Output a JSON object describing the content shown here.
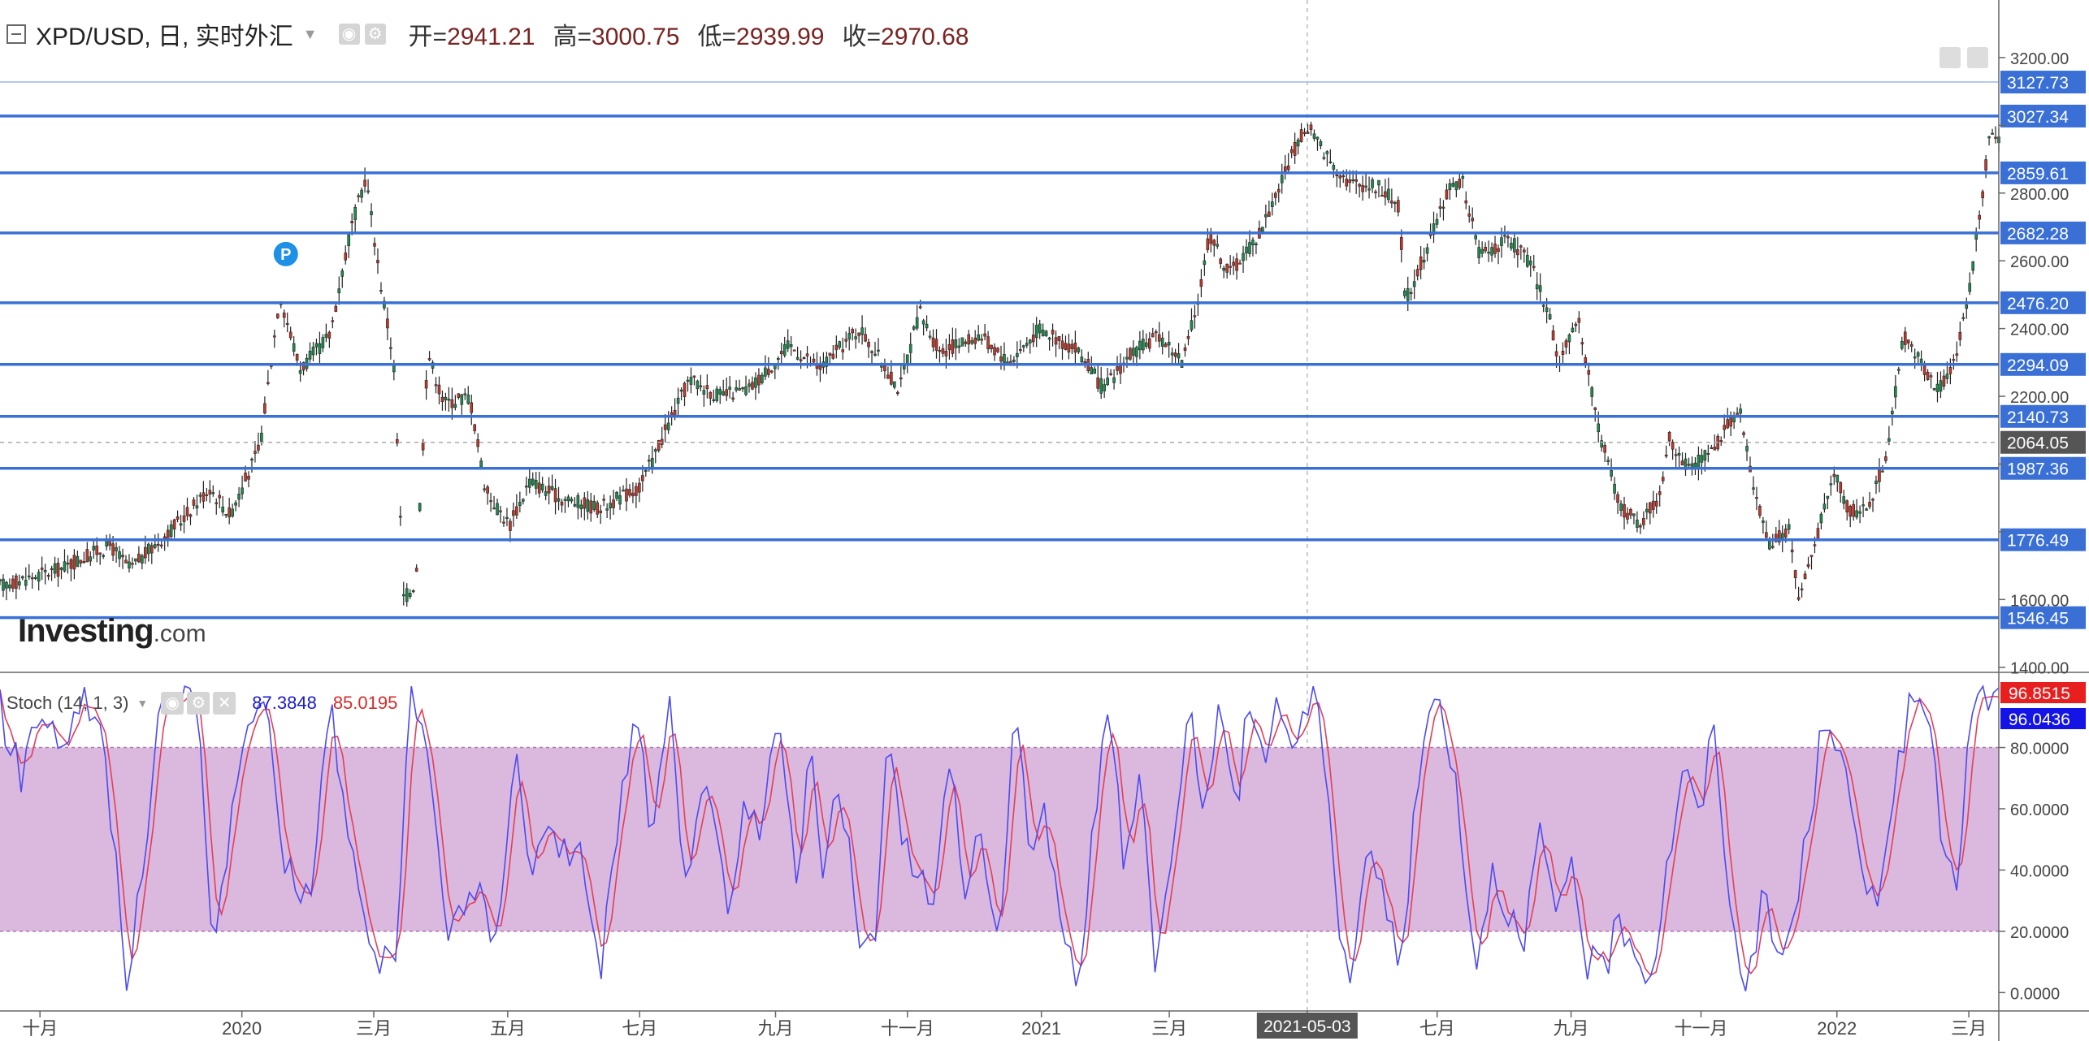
{
  "header": {
    "title": "XPD/USD, 日, 实时外汇",
    "open_label": "开=",
    "open": "2941.21",
    "high_label": "高=",
    "high": "3000.75",
    "low_label": "低=",
    "low": "2939.99",
    "close_label": "收=",
    "close": "2970.68"
  },
  "indicator": {
    "name": "Stoch (14, 1, 3)",
    "k_value": "87.3848",
    "d_value": "85.0195",
    "k_color": "#1a1acc",
    "d_color": "#d62b2b"
  },
  "logo": {
    "main": "Investing",
    "suffix": ".com"
  },
  "colors": {
    "up": "#c0392b",
    "down": "#1e8c4e",
    "level_line": "#3a70d6",
    "band": "#dbb8dd",
    "k": "#4b4bf0",
    "d": "#e0405a"
  },
  "chart_data": [
    {
      "type": "candlestick",
      "symbol": "XPD/USD",
      "interval": "日",
      "y_ticks": [
        1400,
        1600,
        1800,
        2000,
        2200,
        2400,
        2600,
        2800,
        3000,
        3200
      ],
      "y_tick_labels": [
        "1400.00",
        "1600.00",
        "",
        "",
        "2200.00",
        "2400.00",
        "2600.00",
        "2800.00",
        "",
        "3200.00"
      ],
      "ylim": [
        1385,
        3370
      ],
      "x_ticks": [
        {
          "label": "十月",
          "t": 0.02
        },
        {
          "label": "2020",
          "t": 0.121
        },
        {
          "label": "三月",
          "t": 0.187
        },
        {
          "label": "五月",
          "t": 0.254
        },
        {
          "label": "七月",
          "t": 0.32
        },
        {
          "label": "九月",
          "t": 0.388
        },
        {
          "label": "十一月",
          "t": 0.454
        },
        {
          "label": "2021",
          "t": 0.521
        },
        {
          "label": "三月",
          "t": 0.585
        },
        {
          "label": "2021-05-03",
          "t": 0.654,
          "highlight": true
        },
        {
          "label": "七月",
          "t": 0.719
        },
        {
          "label": "九月",
          "t": 0.786
        },
        {
          "label": "十一月",
          "t": 0.851
        },
        {
          "label": "2022",
          "t": 0.919
        },
        {
          "label": "三月",
          "t": 0.985
        }
      ],
      "price_path": [
        [
          0.0,
          1640
        ],
        [
          0.03,
          1690
        ],
        [
          0.055,
          1760
        ],
        [
          0.065,
          1690
        ],
        [
          0.09,
          1830
        ],
        [
          0.105,
          1930
        ],
        [
          0.115,
          1850
        ],
        [
          0.13,
          2050
        ],
        [
          0.14,
          2500
        ],
        [
          0.15,
          2280
        ],
        [
          0.165,
          2380
        ],
        [
          0.175,
          2680
        ],
        [
          0.183,
          2850
        ],
        [
          0.19,
          2550
        ],
        [
          0.197,
          2300
        ],
        [
          0.202,
          1600
        ],
        [
          0.208,
          1650
        ],
        [
          0.214,
          2330
        ],
        [
          0.222,
          2180
        ],
        [
          0.235,
          2200
        ],
        [
          0.243,
          1920
        ],
        [
          0.255,
          1820
        ],
        [
          0.265,
          1950
        ],
        [
          0.28,
          1900
        ],
        [
          0.3,
          1870
        ],
        [
          0.32,
          1930
        ],
        [
          0.33,
          2060
        ],
        [
          0.345,
          2250
        ],
        [
          0.36,
          2200
        ],
        [
          0.375,
          2220
        ],
        [
          0.395,
          2350
        ],
        [
          0.41,
          2280
        ],
        [
          0.43,
          2400
        ],
        [
          0.45,
          2220
        ],
        [
          0.46,
          2450
        ],
        [
          0.47,
          2330
        ],
        [
          0.49,
          2380
        ],
        [
          0.505,
          2300
        ],
        [
          0.52,
          2400
        ],
        [
          0.54,
          2330
        ],
        [
          0.552,
          2220
        ],
        [
          0.565,
          2320
        ],
        [
          0.58,
          2380
        ],
        [
          0.592,
          2300
        ],
        [
          0.6,
          2500
        ],
        [
          0.605,
          2680
        ],
        [
          0.615,
          2560
        ],
        [
          0.63,
          2680
        ],
        [
          0.64,
          2820
        ],
        [
          0.65,
          2960
        ],
        [
          0.655,
          2990
        ],
        [
          0.665,
          2900
        ],
        [
          0.675,
          2830
        ],
        [
          0.69,
          2820
        ],
        [
          0.7,
          2760
        ],
        [
          0.703,
          2480
        ],
        [
          0.715,
          2650
        ],
        [
          0.725,
          2820
        ],
        [
          0.732,
          2830
        ],
        [
          0.74,
          2620
        ],
        [
          0.755,
          2660
        ],
        [
          0.765,
          2600
        ],
        [
          0.775,
          2440
        ],
        [
          0.78,
          2300
        ],
        [
          0.79,
          2420
        ],
        [
          0.8,
          2100
        ],
        [
          0.81,
          1880
        ],
        [
          0.82,
          1820
        ],
        [
          0.83,
          1900
        ],
        [
          0.835,
          2080
        ],
        [
          0.845,
          1980
        ],
        [
          0.858,
          2050
        ],
        [
          0.87,
          2170
        ],
        [
          0.876,
          1970
        ],
        [
          0.885,
          1760
        ],
        [
          0.895,
          1810
        ],
        [
          0.9,
          1600
        ],
        [
          0.906,
          1720
        ],
        [
          0.918,
          1980
        ],
        [
          0.925,
          1860
        ],
        [
          0.935,
          1870
        ],
        [
          0.945,
          2060
        ],
        [
          0.952,
          2380
        ],
        [
          0.96,
          2310
        ],
        [
          0.97,
          2220
        ],
        [
          0.978,
          2300
        ],
        [
          0.985,
          2500
        ],
        [
          0.992,
          2800
        ],
        [
          0.996,
          3000
        ],
        [
          1.0,
          2970
        ]
      ],
      "marker_P": {
        "t": 0.143,
        "price": 2620,
        "label": "P"
      },
      "horizontal_levels": [
        3027.34,
        2859.61,
        2682.28,
        2476.2,
        2294.09,
        2140.73,
        1987.36,
        1776.49,
        1546.45
      ],
      "level_labels": [
        "3027.34",
        "2859.61",
        "2682.28",
        "2476.20",
        "2294.09",
        "2140.73",
        "1987.36",
        "1776.49",
        "1546.45"
      ],
      "level_line_thin": 3127.73,
      "level_line_thin_label": "3127.73",
      "current_price_line": 2064.05,
      "current_price_label": "2064.05",
      "crosshair_t": 0.654
    },
    {
      "type": "line",
      "name": "Stoch (14, 1, 3)",
      "ylim": [
        -6,
        104
      ],
      "y_ticks": [
        0,
        20,
        40,
        60,
        80
      ],
      "y_tick_labels": [
        "0.0000",
        "20.0000",
        "40.0000",
        "60.0000",
        "80.0000"
      ],
      "band": [
        20,
        80
      ],
      "k_last_label": "96.0436",
      "d_last_label": "96.8515",
      "k_path": [
        [
          0.0,
          93
        ],
        [
          0.01,
          70
        ],
        [
          0.02,
          95
        ],
        [
          0.03,
          80
        ],
        [
          0.04,
          95
        ],
        [
          0.05,
          90
        ],
        [
          0.055,
          60
        ],
        [
          0.063,
          5
        ],
        [
          0.07,
          30
        ],
        [
          0.08,
          92
        ],
        [
          0.092,
          98
        ],
        [
          0.1,
          90
        ],
        [
          0.106,
          12
        ],
        [
          0.115,
          55
        ],
        [
          0.128,
          98
        ],
        [
          0.135,
          88
        ],
        [
          0.142,
          45
        ],
        [
          0.15,
          30
        ],
        [
          0.158,
          42
        ],
        [
          0.165,
          99
        ],
        [
          0.172,
          60
        ],
        [
          0.18,
          30
        ],
        [
          0.19,
          8
        ],
        [
          0.198,
          12
        ],
        [
          0.205,
          95
        ],
        [
          0.215,
          75
        ],
        [
          0.223,
          20
        ],
        [
          0.23,
          30
        ],
        [
          0.24,
          30
        ],
        [
          0.248,
          15
        ],
        [
          0.258,
          85
        ],
        [
          0.265,
          35
        ],
        [
          0.275,
          60
        ],
        [
          0.285,
          40
        ],
        [
          0.292,
          45
        ],
        [
          0.3,
          5
        ],
        [
          0.31,
          60
        ],
        [
          0.318,
          90
        ],
        [
          0.327,
          50
        ],
        [
          0.335,
          95
        ],
        [
          0.342,
          30
        ],
        [
          0.35,
          70
        ],
        [
          0.358,
          50
        ],
        [
          0.365,
          20
        ],
        [
          0.372,
          60
        ],
        [
          0.38,
          50
        ],
        [
          0.39,
          95
        ],
        [
          0.398,
          30
        ],
        [
          0.405,
          82
        ],
        [
          0.412,
          35
        ],
        [
          0.42,
          70
        ],
        [
          0.43,
          20
        ],
        [
          0.437,
          10
        ],
        [
          0.445,
          90
        ],
        [
          0.452,
          50
        ],
        [
          0.46,
          40
        ],
        [
          0.467,
          25
        ],
        [
          0.475,
          80
        ],
        [
          0.483,
          30
        ],
        [
          0.49,
          55
        ],
        [
          0.5,
          15
        ],
        [
          0.508,
          92
        ],
        [
          0.515,
          50
        ],
        [
          0.523,
          60
        ],
        [
          0.53,
          20
        ],
        [
          0.54,
          5
        ],
        [
          0.548,
          60
        ],
        [
          0.555,
          95
        ],
        [
          0.562,
          40
        ],
        [
          0.57,
          75
        ],
        [
          0.578,
          10
        ],
        [
          0.586,
          40
        ],
        [
          0.594,
          95
        ],
        [
          0.602,
          65
        ],
        [
          0.61,
          92
        ],
        [
          0.618,
          60
        ],
        [
          0.625,
          94
        ],
        [
          0.632,
          78
        ],
        [
          0.64,
          94
        ],
        [
          0.648,
          80
        ],
        [
          0.656,
          98
        ],
        [
          0.664,
          75
        ],
        [
          0.67,
          20
        ],
        [
          0.676,
          5
        ],
        [
          0.684,
          50
        ],
        [
          0.692,
          30
        ],
        [
          0.7,
          10
        ],
        [
          0.706,
          45
        ],
        [
          0.714,
          92
        ],
        [
          0.722,
          95
        ],
        [
          0.73,
          60
        ],
        [
          0.738,
          8
        ],
        [
          0.746,
          40
        ],
        [
          0.754,
          30
        ],
        [
          0.762,
          10
        ],
        [
          0.77,
          55
        ],
        [
          0.778,
          20
        ],
        [
          0.786,
          45
        ],
        [
          0.794,
          10
        ],
        [
          0.802,
          5
        ],
        [
          0.81,
          25
        ],
        [
          0.818,
          15
        ],
        [
          0.826,
          5
        ],
        [
          0.834,
          40
        ],
        [
          0.842,
          75
        ],
        [
          0.85,
          55
        ],
        [
          0.858,
          90
        ],
        [
          0.866,
          20
        ],
        [
          0.874,
          5
        ],
        [
          0.882,
          30
        ],
        [
          0.89,
          10
        ],
        [
          0.898,
          25
        ],
        [
          0.906,
          60
        ],
        [
          0.914,
          95
        ],
        [
          0.922,
          75
        ],
        [
          0.93,
          40
        ],
        [
          0.938,
          30
        ],
        [
          0.946,
          60
        ],
        [
          0.954,
          90
        ],
        [
          0.962,
          97
        ],
        [
          0.97,
          60
        ],
        [
          0.978,
          30
        ],
        [
          0.986,
          90
        ],
        [
          0.992,
          96
        ],
        [
          1.0,
          96
        ]
      ]
    }
  ]
}
